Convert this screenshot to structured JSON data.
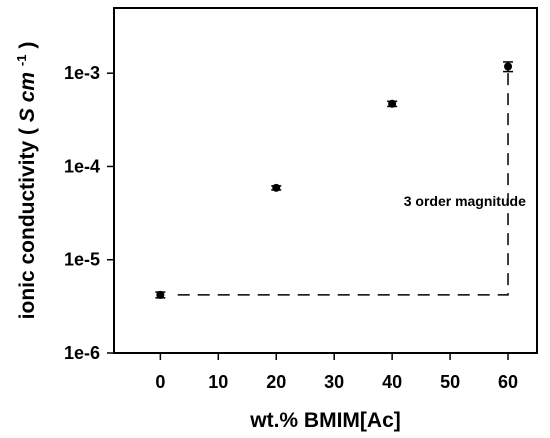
{
  "chart_data": {
    "type": "scatter",
    "xlabel": "wt.% BMIM[Ac]",
    "ylabel": "ionic conductivity",
    "ylabel_unit_symbol": "S",
    "ylabel_unit_cm": "cm",
    "ylabel_unit_exp": "-1",
    "ylabel_unit_close": ")",
    "xlim": [
      -8,
      65
    ],
    "ylim": [
      1e-06,
      0.005
    ],
    "yscale": "log",
    "x_ticks": [
      0,
      10,
      20,
      30,
      40,
      50,
      60
    ],
    "x_tick_labels": [
      "0",
      "10",
      "20",
      "30",
      "40",
      "50",
      "60"
    ],
    "y_ticks": [
      1e-06,
      1e-05,
      0.0001,
      0.001
    ],
    "y_tick_labels": [
      "1e-6",
      "1e-5",
      "1e-4",
      "1e-3"
    ],
    "grid": false,
    "series": [
      {
        "x": [
          0,
          20,
          40,
          60
        ],
        "y": [
          4.2e-06,
          5.9e-05,
          0.00047,
          0.00118
        ],
        "y_err": [
          3e-07,
          3e-06,
          3e-05,
          0.00014
        ],
        "marker": "circle",
        "color": "#000000"
      }
    ],
    "annotations": [
      {
        "text": "3 order magnitude",
        "x": 42,
        "y": 5.9e-05
      }
    ],
    "dashed_guide": {
      "x_start": 3,
      "x_end": 60,
      "y_bottom": 4.2e-06,
      "y_top": 0.00105
    }
  }
}
